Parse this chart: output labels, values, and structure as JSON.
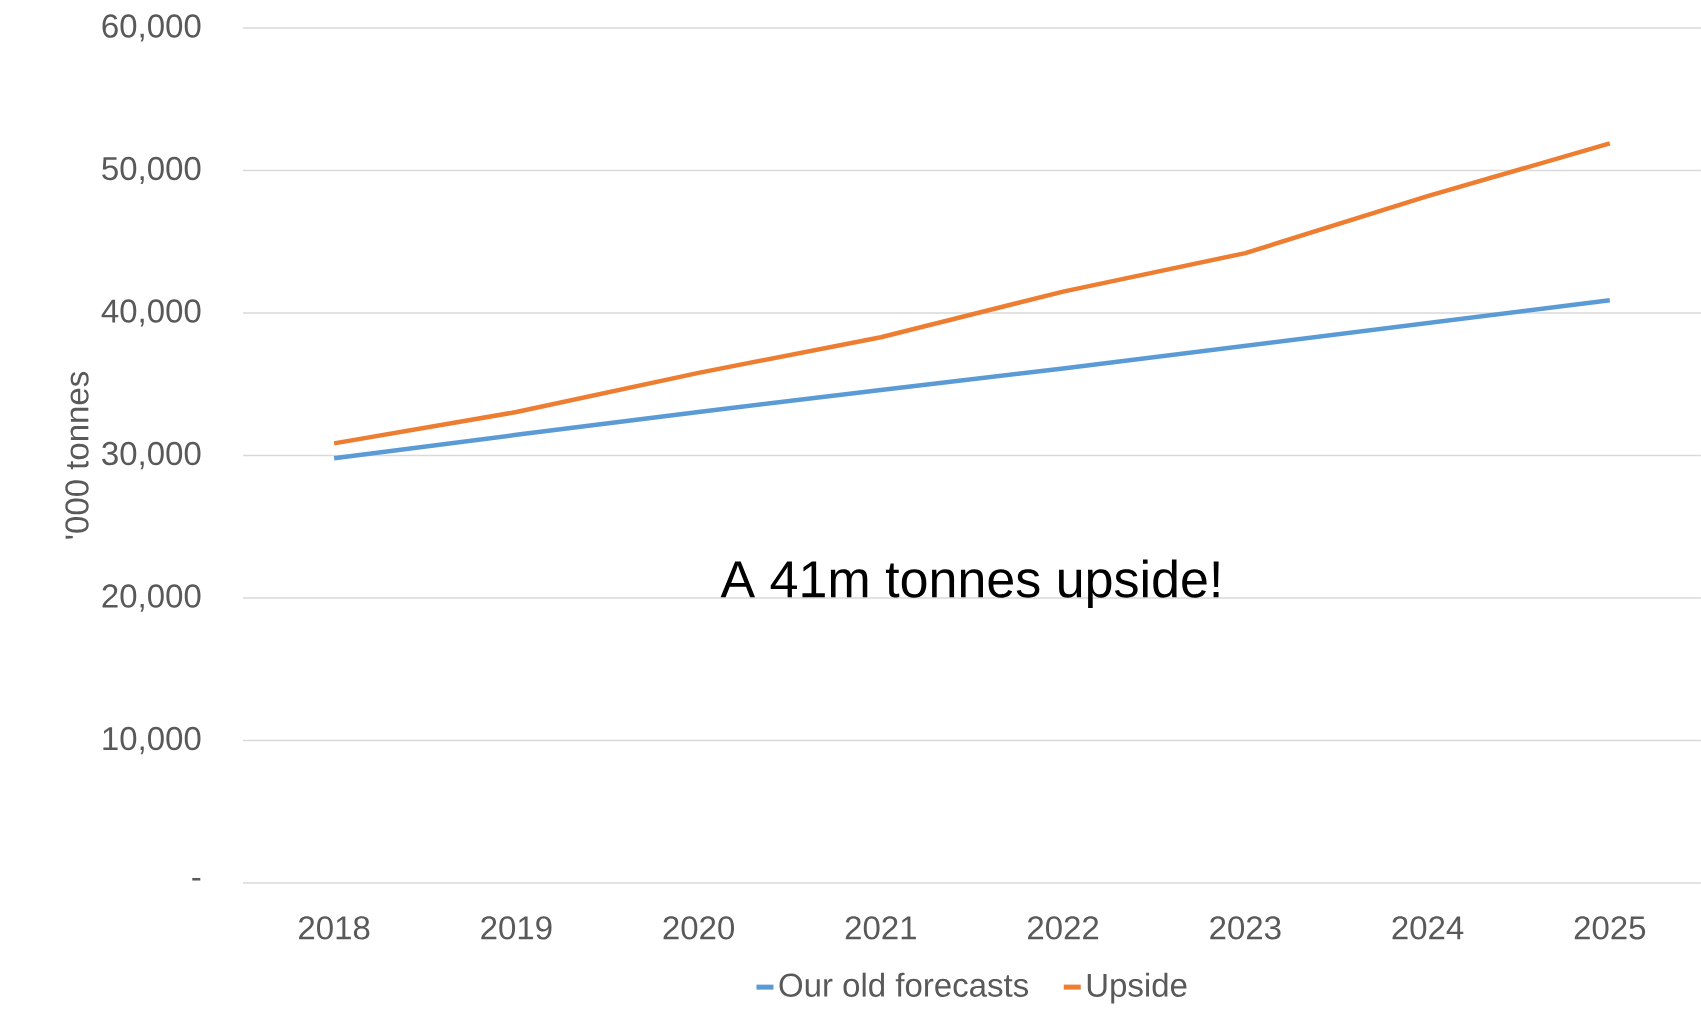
{
  "chart_data": {
    "type": "line",
    "ylabel": "'000 tonnes",
    "categories": [
      "2018",
      "2019",
      "2020",
      "2021",
      "2022",
      "2023",
      "2024",
      "2025"
    ],
    "series": [
      {
        "name": "Our old forecasts",
        "color": "#5b9bd5",
        "values": [
          29800,
          31450,
          33050,
          34600,
          36100,
          37700,
          39300,
          40900
        ]
      },
      {
        "name": "Upside",
        "color": "#ed7d31",
        "values": [
          30850,
          33050,
          35800,
          38300,
          41500,
          44200,
          48200,
          51900
        ]
      }
    ],
    "ylim": [
      0,
      60000
    ],
    "yticks": [
      {
        "value": 0,
        "label": "-"
      },
      {
        "value": 10000,
        "label": "10,000"
      },
      {
        "value": 20000,
        "label": "20,000"
      },
      {
        "value": 30000,
        "label": "30,000"
      },
      {
        "value": 40000,
        "label": "40,000"
      },
      {
        "value": 50000,
        "label": "50,000"
      },
      {
        "value": 60000,
        "label": "60,000"
      }
    ],
    "grid": "y",
    "legend": "bottom",
    "marker": "none",
    "annotations": [
      "A 41m tonnes upside!"
    ]
  }
}
